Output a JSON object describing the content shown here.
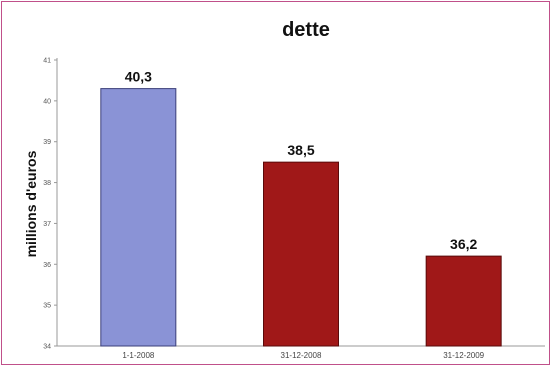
{
  "chart_data": {
    "type": "bar",
    "title": "dette",
    "ylabel": "millions d'euros",
    "xlabel": "",
    "categories": [
      "1-1-2008",
      "31-12-2008",
      "31-12-2009"
    ],
    "values": [
      40.3,
      38.5,
      36.2
    ],
    "value_labels": [
      "40,3",
      "38,5",
      "36,2"
    ],
    "ylim": [
      34,
      41
    ],
    "yticks": [
      34,
      35,
      36,
      37,
      38,
      39,
      40,
      41
    ],
    "bar_colors": [
      "#8a93d6",
      "#a01818",
      "#a01818"
    ],
    "grid": false,
    "legend": "none"
  }
}
